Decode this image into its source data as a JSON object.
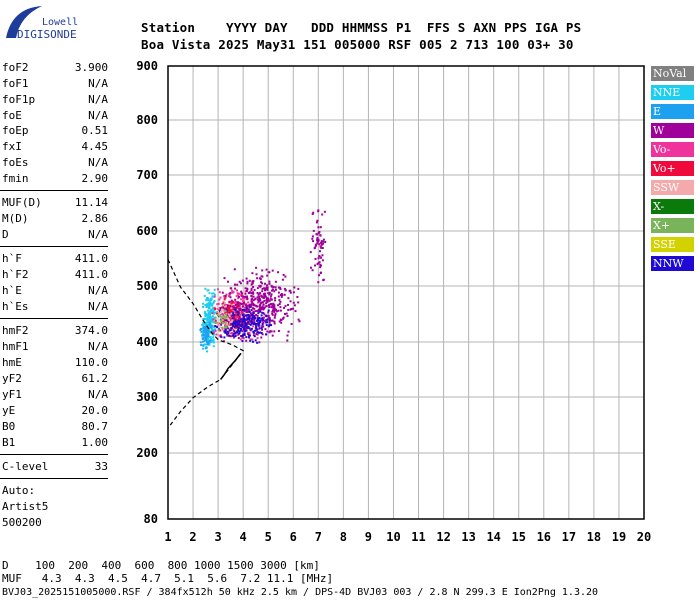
{
  "logo": {
    "line1": "Lowell",
    "line2": "DIGISONDE"
  },
  "header": {
    "row1": "Station    YYYY DAY   DDD HHMMSS P1  FFS S AXN PPS IGA PS",
    "row2": "Boa Vista 2025 May31 151 005000 RSF 005 2 713 100 03+ 30"
  },
  "params": [
    {
      "name": "foF2",
      "value": "3.900"
    },
    {
      "name": "foF1",
      "value": "N/A"
    },
    {
      "name": "foF1p",
      "value": "N/A"
    },
    {
      "name": "foE",
      "value": "N/A"
    },
    {
      "name": "foEp",
      "value": "0.51"
    },
    {
      "name": "fxI",
      "value": "4.45"
    },
    {
      "name": "foEs",
      "value": "N/A"
    },
    {
      "name": "fmin",
      "value": "2.90"
    },
    {
      "name": "MUF(D)",
      "value": "11.14"
    },
    {
      "name": "M(D)",
      "value": "2.86"
    },
    {
      "name": "D",
      "value": "N/A"
    },
    {
      "name": "h`F",
      "value": "411.0"
    },
    {
      "name": "h`F2",
      "value": "411.0"
    },
    {
      "name": "h`E",
      "value": "N/A"
    },
    {
      "name": "h`Es",
      "value": "N/A"
    },
    {
      "name": "hmF2",
      "value": "374.0"
    },
    {
      "name": "hmF1",
      "value": "N/A"
    },
    {
      "name": "hmE",
      "value": "110.0"
    },
    {
      "name": "yF2",
      "value": "61.2"
    },
    {
      "name": "yF1",
      "value": "N/A"
    },
    {
      "name": "yE",
      "value": "20.0"
    },
    {
      "name": "B0",
      "value": "80.7"
    },
    {
      "name": "B1",
      "value": "1.00"
    },
    {
      "name": "C-level",
      "value": "33"
    }
  ],
  "auto": [
    "Auto:",
    "Artist5",
    "500200"
  ],
  "legend": [
    {
      "label": "NoVal",
      "color": "#808080"
    },
    {
      "label": "NNE",
      "color": "#1ecdf0"
    },
    {
      "label": "E",
      "color": "#1ea0f0"
    },
    {
      "label": "W",
      "color": "#a0009a"
    },
    {
      "label": "Vo-",
      "color": "#f0329c"
    },
    {
      "label": "Vo+",
      "color": "#f00a3c"
    },
    {
      "label": "SSW",
      "color": "#f4aaaa"
    },
    {
      "label": "X-",
      "color": "#0a7a0a"
    },
    {
      "label": "X+",
      "color": "#7ab45a"
    },
    {
      "label": "SSE",
      "color": "#d2d200"
    },
    {
      "label": "NNW",
      "color": "#1e0ad2"
    }
  ],
  "footer": {
    "row1": "D    100  200  400  600  800 1000 1500 3000 [km]",
    "row2": "MUF   4.3  4.3  4.5  4.7  5.1  5.6  7.2 11.1 [MHz]",
    "row3": "BVJ03_2025151005000.RSF / 384fx512h 50 kHz 2.5 km / DPS-4D BVJ03 003 / 2.8 N 299.3 E Ion2Png 1.3.20"
  },
  "chart_data": {
    "type": "scatter",
    "xlim": [
      1,
      20
    ],
    "ylim": [
      80,
      900
    ],
    "xticks": [
      1,
      2,
      3,
      4,
      5,
      6,
      7,
      8,
      9,
      10,
      11,
      12,
      13,
      14,
      15,
      16,
      17,
      18,
      19,
      20
    ],
    "yticks": [
      80,
      200,
      300,
      400,
      500,
      600,
      700,
      800,
      900
    ],
    "grid": true,
    "clusters": [
      {
        "name": "NNE",
        "x": [
          2.3,
          2.9
        ],
        "y": [
          385,
          500
        ],
        "count": 220
      },
      {
        "name": "E",
        "x": [
          2.2,
          2.8
        ],
        "y": [
          390,
          440
        ],
        "count": 60
      },
      {
        "name": "Vo-",
        "x": [
          2.6,
          4.8
        ],
        "y": [
          400,
          500
        ],
        "count": 260
      },
      {
        "name": "Vo+",
        "x": [
          2.8,
          4.2
        ],
        "y": [
          410,
          490
        ],
        "count": 160
      },
      {
        "name": "W",
        "x": [
          3.0,
          6.3
        ],
        "y": [
          400,
          540
        ],
        "count": 420
      },
      {
        "name": "NNW",
        "x": [
          2.8,
          5.2
        ],
        "y": [
          400,
          470
        ],
        "count": 200
      },
      {
        "name": "W",
        "x": [
          6.6,
          7.3
        ],
        "y": [
          500,
          660
        ],
        "count": 70
      },
      {
        "name": "SSW",
        "x": [
          2.9,
          3.6
        ],
        "y": [
          420,
          480
        ],
        "count": 40
      },
      {
        "name": "X+",
        "x": [
          2.7,
          3.4
        ],
        "y": [
          420,
          470
        ],
        "count": 25
      }
    ],
    "profile_solid": [
      [
        3.9,
        380
      ],
      [
        3.7,
        368
      ],
      [
        3.4,
        353
      ],
      [
        3.25,
        342
      ],
      [
        3.1,
        333
      ]
    ],
    "profile_dashed": [
      [
        1.0,
        550
      ],
      [
        1.5,
        500
      ],
      [
        2.0,
        470
      ],
      [
        2.4,
        440
      ],
      [
        2.7,
        420
      ],
      [
        3.0,
        405
      ],
      [
        3.3,
        400
      ],
      [
        3.6,
        395
      ],
      [
        3.8,
        390
      ],
      [
        4.0,
        385
      ],
      [
        3.1,
        333
      ],
      [
        2.6,
        320
      ],
      [
        2.0,
        300
      ],
      [
        1.5,
        275
      ],
      [
        1.0,
        245
      ]
    ]
  }
}
